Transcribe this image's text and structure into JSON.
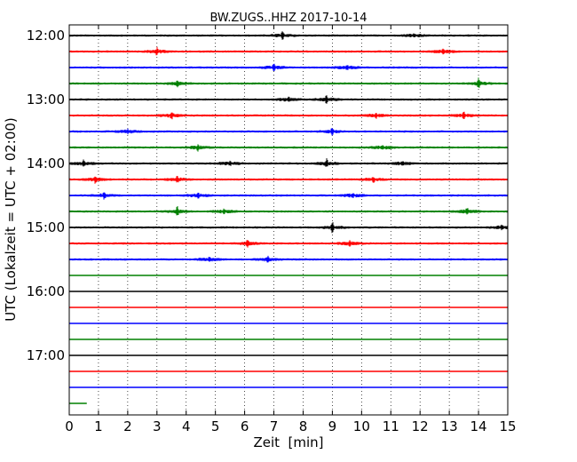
{
  "chart_data": {
    "type": "line",
    "title": "BW.ZUGS..HHZ 2017-10-14",
    "xlabel": "Zeit  [min]",
    "ylabel": "UTC (Lokalzeit = UTC + 02:00)",
    "xlim": [
      0,
      15
    ],
    "x_ticks": [
      "0",
      "1",
      "2",
      "3",
      "4",
      "5",
      "6",
      "7",
      "8",
      "9",
      "10",
      "11",
      "12",
      "13",
      "14",
      "15"
    ],
    "y_tick_labels": [
      "12:00",
      "13:00",
      "14:00",
      "15:00",
      "16:00",
      "17:00"
    ],
    "y_tick_traces": [
      0,
      4,
      8,
      12,
      16,
      20
    ],
    "grid": {
      "x": true,
      "y": false
    },
    "trace_minutes": 15,
    "trace_colors": [
      "#000000",
      "#ff0000",
      "#0000ff",
      "#008000"
    ],
    "trace_starts": [
      "12:00",
      "12:15",
      "12:30",
      "12:45",
      "13:00",
      "13:15",
      "13:30",
      "13:45",
      "14:00",
      "14:15",
      "14:30",
      "14:45",
      "15:00",
      "15:15",
      "15:30",
      "15:45",
      "16:00",
      "16:15",
      "16:30",
      "16:45",
      "17:00",
      "17:15",
      "17:30",
      "17:45"
    ],
    "data_end_minute_last_trace": 0.6,
    "events": [
      {
        "trace": 0,
        "minute": 7.3,
        "amp": 5
      },
      {
        "trace": 0,
        "minute": 11.8,
        "amp": 3
      },
      {
        "trace": 1,
        "minute": 3.0,
        "amp": 5
      },
      {
        "trace": 1,
        "minute": 12.8,
        "amp": 4
      },
      {
        "trace": 2,
        "minute": 7.0,
        "amp": 4
      },
      {
        "trace": 2,
        "minute": 9.5,
        "amp": 3
      },
      {
        "trace": 3,
        "minute": 3.7,
        "amp": 4
      },
      {
        "trace": 3,
        "minute": 14.0,
        "amp": 6
      },
      {
        "trace": 4,
        "minute": 7.5,
        "amp": 3
      },
      {
        "trace": 4,
        "minute": 8.8,
        "amp": 5
      },
      {
        "trace": 5,
        "minute": 3.5,
        "amp": 5
      },
      {
        "trace": 5,
        "minute": 10.5,
        "amp": 3
      },
      {
        "trace": 5,
        "minute": 13.5,
        "amp": 4
      },
      {
        "trace": 6,
        "minute": 2.0,
        "amp": 3
      },
      {
        "trace": 6,
        "minute": 9.0,
        "amp": 5
      },
      {
        "trace": 7,
        "minute": 4.4,
        "amp": 4
      },
      {
        "trace": 7,
        "minute": 10.7,
        "amp": 3
      },
      {
        "trace": 8,
        "minute": 0.5,
        "amp": 5
      },
      {
        "trace": 8,
        "minute": 5.5,
        "amp": 3
      },
      {
        "trace": 8,
        "minute": 8.8,
        "amp": 6
      },
      {
        "trace": 8,
        "minute": 11.4,
        "amp": 3
      },
      {
        "trace": 9,
        "minute": 0.9,
        "amp": 5
      },
      {
        "trace": 9,
        "minute": 3.7,
        "amp": 4
      },
      {
        "trace": 9,
        "minute": 10.4,
        "amp": 4
      },
      {
        "trace": 10,
        "minute": 1.2,
        "amp": 5
      },
      {
        "trace": 10,
        "minute": 4.4,
        "amp": 4
      },
      {
        "trace": 10,
        "minute": 9.7,
        "amp": 3
      },
      {
        "trace": 11,
        "minute": 3.7,
        "amp": 6
      },
      {
        "trace": 11,
        "minute": 5.3,
        "amp": 3
      },
      {
        "trace": 11,
        "minute": 13.6,
        "amp": 5
      },
      {
        "trace": 12,
        "minute": 9.0,
        "amp": 7
      },
      {
        "trace": 12,
        "minute": 14.8,
        "amp": 3
      },
      {
        "trace": 13,
        "minute": 6.1,
        "amp": 5
      },
      {
        "trace": 13,
        "minute": 9.6,
        "amp": 4
      },
      {
        "trace": 14,
        "minute": 4.8,
        "amp": 3
      },
      {
        "trace": 14,
        "minute": 6.8,
        "amp": 5
      }
    ]
  }
}
